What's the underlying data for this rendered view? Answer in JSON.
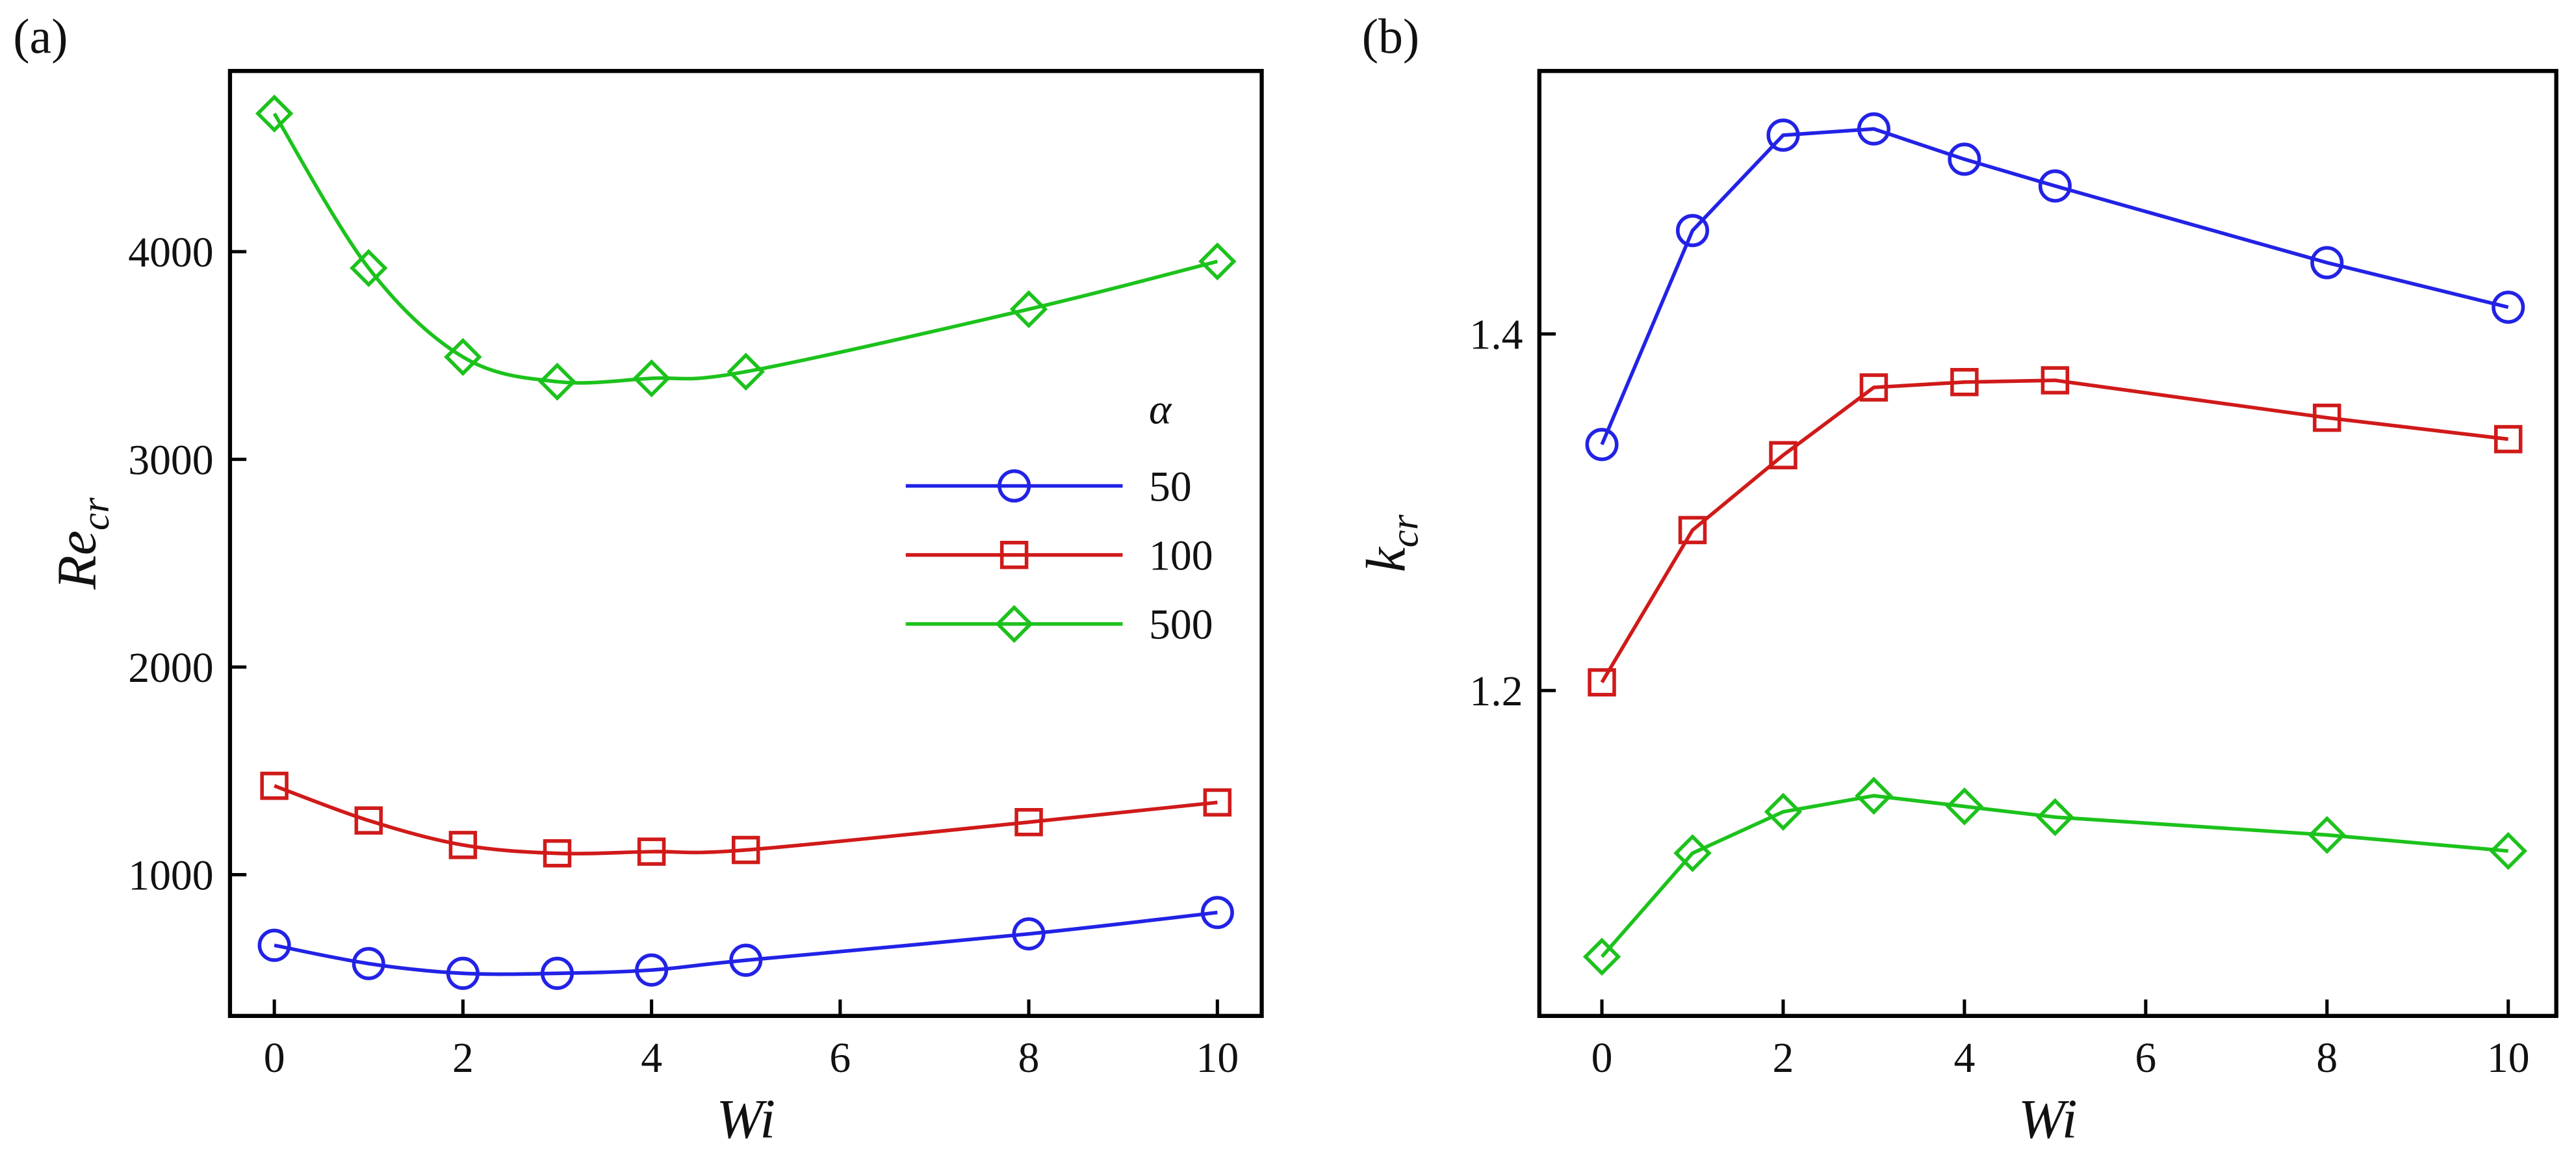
{
  "chart_data": [
    {
      "type": "line",
      "panel_label": "(a)",
      "x_label": "Wi",
      "y_label": "Re",
      "y_label_sub": "cr",
      "xlim": [
        -0.47,
        10.47
      ],
      "ylim": [
        320,
        4870
      ],
      "xticks": [
        0,
        2,
        4,
        6,
        8,
        10
      ],
      "yticks": [
        1000,
        2000,
        3000,
        4000
      ],
      "smooth": true,
      "legend": "center right",
      "legend_title": "α",
      "x": [
        0,
        1,
        2,
        3,
        4,
        5,
        8,
        10
      ],
      "series": [
        {
          "name": "50",
          "color": "#2222e6",
          "marker": "circle",
          "values": [
            660,
            572,
            525,
            525,
            541,
            588,
            715,
            818
          ]
        },
        {
          "name": "100",
          "color": "#d01a1a",
          "marker": "square",
          "values": [
            1428,
            1261,
            1143,
            1103,
            1111,
            1119,
            1253,
            1348
          ]
        },
        {
          "name": "500",
          "color": "#1cc21c",
          "marker": "diamond",
          "values": [
            4665,
            3921,
            3493,
            3374,
            3390,
            3422,
            3723,
            3953
          ]
        }
      ]
    },
    {
      "type": "line",
      "panel_label": "(b)",
      "x_label": "Wi",
      "y_label": "k",
      "y_label_sub": "cr",
      "xlim": [
        -0.69,
        10.53
      ],
      "ylim": [
        1.0175,
        1.5475
      ],
      "xticks": [
        0,
        2,
        4,
        6,
        8,
        10
      ],
      "yticks": [
        1.2,
        1.4
      ],
      "smooth": false,
      "x": [
        0,
        1,
        2,
        3,
        4,
        5,
        8,
        10
      ],
      "series": [
        {
          "name": "50",
          "color": "#2222e6",
          "marker": "circle",
          "values": [
            1.338,
            1.458,
            1.5115,
            1.515,
            1.498,
            1.483,
            1.44,
            1.415
          ]
        },
        {
          "name": "100",
          "color": "#d01a1a",
          "marker": "square",
          "values": [
            1.2046,
            1.29,
            1.332,
            1.37,
            1.373,
            1.374,
            1.353,
            1.341
          ]
        },
        {
          "name": "500",
          "color": "#1cc21c",
          "marker": "diamond",
          "values": [
            1.0507,
            1.1088,
            1.132,
            1.141,
            1.135,
            1.129,
            1.119,
            1.11
          ]
        }
      ]
    }
  ]
}
